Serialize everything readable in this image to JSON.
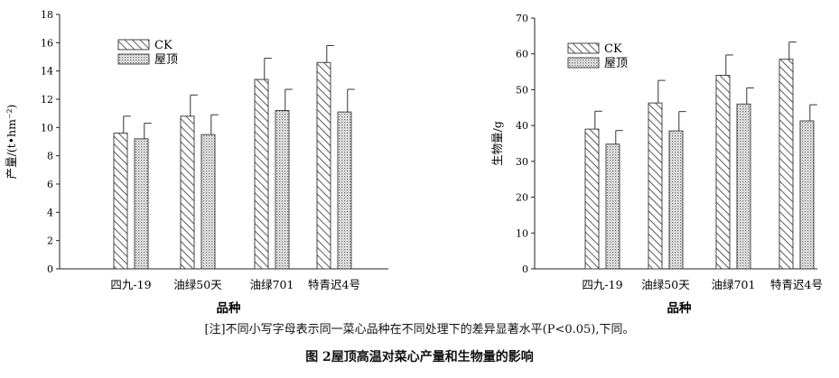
{
  "chart_data": [
    {
      "type": "bar",
      "title": "",
      "xlabel": "品种",
      "ylabel": "产量/(t•hm⁻²)",
      "ylim": [
        0,
        18
      ],
      "yticks": [
        0,
        2,
        4,
        6,
        8,
        10,
        12,
        14,
        16,
        18
      ],
      "categories": [
        "四九-19",
        "油绿50天",
        "油绿701",
        "特青迟4号"
      ],
      "series": [
        {
          "name": "CK",
          "pattern": "diagonal-hatch",
          "values": [
            9.6,
            10.8,
            13.4,
            14.6
          ],
          "errors": [
            1.2,
            1.5,
            1.5,
            1.2
          ]
        },
        {
          "name": "屋顶",
          "pattern": "dotted",
          "values": [
            9.2,
            9.5,
            11.2,
            11.1
          ],
          "errors": [
            1.1,
            1.4,
            1.5,
            1.6
          ]
        }
      ],
      "legend_position": "top-left",
      "grid": false
    },
    {
      "type": "bar",
      "title": "",
      "xlabel": "品种",
      "ylabel": "生物量/g",
      "ylim": [
        0,
        70
      ],
      "yticks": [
        0,
        10,
        20,
        30,
        40,
        50,
        60,
        70
      ],
      "categories": [
        "四九-19",
        "油绿50天",
        "油绿701",
        "特青迟4号"
      ],
      "series": [
        {
          "name": "CK",
          "pattern": "diagonal-hatch",
          "values": [
            39,
            46.3,
            54,
            58.5
          ],
          "errors": [
            5,
            6.3,
            5.7,
            4.8
          ]
        },
        {
          "name": "屋顶",
          "pattern": "dotted",
          "values": [
            34.8,
            38.5,
            46,
            41.3
          ],
          "errors": [
            3.8,
            5.4,
            4.5,
            4.5
          ]
        }
      ],
      "legend_position": "top-left",
      "grid": false
    }
  ],
  "figure": {
    "note_tag": "[注]",
    "note": "不同小写字母表示同一菜心品种在不同处理下的差异显著水平(P<0.05),下同。",
    "caption_number": "图 2",
    "caption": "屋顶高温对菜心产量和生物量的影响"
  }
}
